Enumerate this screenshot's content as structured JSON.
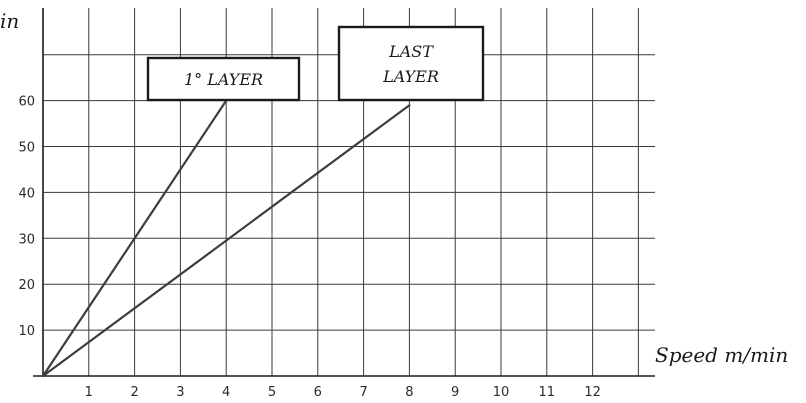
{
  "chart_data": {
    "type": "line",
    "xlabel": "Speed m/min",
    "ylabel_fragment": "in",
    "x_ticks": [
      "1",
      "2",
      "3",
      "4",
      "5",
      "6",
      "7",
      "8",
      "9",
      "10",
      "11",
      "12"
    ],
    "y_ticks": [
      "10",
      "20",
      "30",
      "40",
      "50",
      "60"
    ],
    "xlim": [
      0,
      13
    ],
    "ylim": [
      0,
      80
    ],
    "grid": true,
    "series": [
      {
        "name": "1° LAYER",
        "x": [
          0,
          4
        ],
        "y": [
          0,
          60
        ]
      },
      {
        "name": "LAST LAYER",
        "x": [
          0,
          8
        ],
        "y": [
          0,
          59
        ]
      }
    ],
    "annotations": [
      {
        "lines": [
          "1° LAYER"
        ]
      },
      {
        "lines": [
          "LAST",
          "LAYER"
        ]
      }
    ]
  }
}
